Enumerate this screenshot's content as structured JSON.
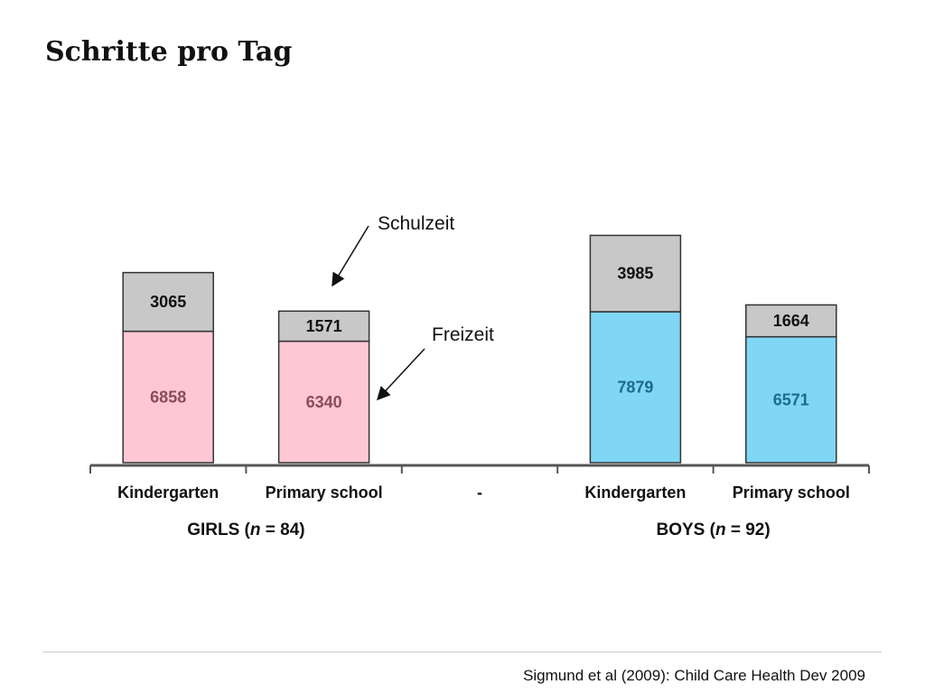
{
  "title": "Schritte pro Tag",
  "citation": "Sigmund et al (2009): Child Care Health Dev 2009",
  "annotations": {
    "school": "Schulzeit",
    "leisure": "Freizeit"
  },
  "colors": {
    "school": "#c8c8c8",
    "girls_leisure": "#ffc7d3",
    "boys_leisure": "#7fd7f5",
    "girls_label": "#8a4a5a",
    "boys_label": "#1f6a8a"
  },
  "chart_data": {
    "type": "bar",
    "stacked": true,
    "categories": [
      "Kindergarten",
      "Primary school",
      "-",
      "Kindergarten",
      "Primary school"
    ],
    "groups": [
      {
        "label": "GIRLS (n = 84)",
        "label_prefix": "GIRLS (",
        "label_n": "n",
        "label_suffix": " = 84)",
        "categories": [
          0,
          1
        ]
      },
      {
        "label": "BOYS (n = 92)",
        "label_prefix": "BOYS (",
        "label_n": "n",
        "label_suffix": " = 92)",
        "categories": [
          3,
          4
        ]
      }
    ],
    "series": [
      {
        "name": "Freizeit",
        "values": [
          6858,
          6340,
          null,
          7879,
          6571
        ]
      },
      {
        "name": "Schulzeit",
        "values": [
          3065,
          1571,
          null,
          3985,
          1664
        ]
      }
    ],
    "ylim": [
      0,
      12000
    ],
    "grid": false,
    "legend": "none"
  }
}
